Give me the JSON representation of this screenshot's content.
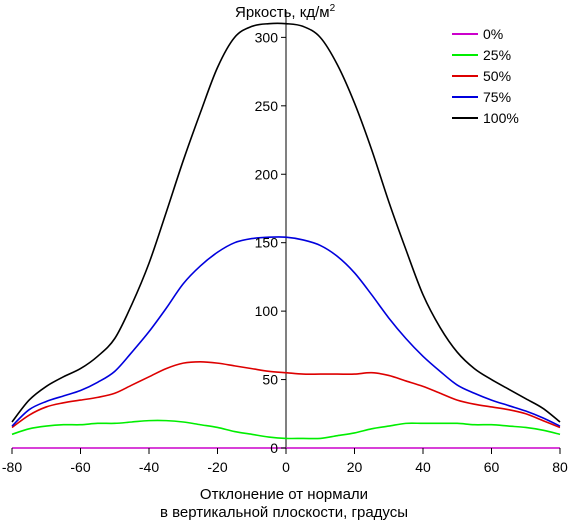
{
  "chart_data": {
    "type": "line",
    "title": "Яркость, кд/м",
    "title_superscript": "2",
    "xlabel_line1": "Отклонение от нормали",
    "xlabel_line2": "в вертикальной плоскости, градусы",
    "xlim": [
      -80,
      80
    ],
    "ylim": [
      0,
      320
    ],
    "x_ticks": [
      -80,
      -60,
      -40,
      -20,
      0,
      20,
      40,
      60,
      80
    ],
    "y_ticks": [
      0,
      50,
      100,
      150,
      200,
      250,
      300
    ],
    "grid": false,
    "legend_position": "top-right",
    "x": [
      -80,
      -75,
      -70,
      -65,
      -60,
      -55,
      -50,
      -45,
      -40,
      -35,
      -30,
      -25,
      -20,
      -15,
      -10,
      -5,
      0,
      5,
      10,
      15,
      20,
      25,
      30,
      35,
      40,
      45,
      50,
      55,
      60,
      65,
      70,
      75,
      80
    ],
    "series": [
      {
        "name": "0%",
        "color": "#cc00cc",
        "values": [
          0,
          0,
          0,
          0,
          0,
          0,
          0,
          0,
          0,
          0,
          0,
          0,
          0,
          0,
          0,
          0,
          0,
          0,
          0,
          0,
          0,
          0,
          0,
          0,
          0,
          0,
          0,
          0,
          0,
          0,
          0,
          0,
          0
        ]
      },
      {
        "name": "25%",
        "color": "#00ee00",
        "values": [
          10,
          14,
          16,
          17,
          17,
          18,
          18,
          19,
          20,
          20,
          19,
          17,
          15,
          12,
          10,
          8,
          7,
          7,
          7,
          9,
          11,
          14,
          16,
          18,
          18,
          18,
          18,
          17,
          17,
          16,
          15,
          13,
          10
        ]
      },
      {
        "name": "50%",
        "color": "#dd0000",
        "values": [
          15,
          24,
          30,
          33,
          35,
          37,
          40,
          46,
          52,
          58,
          62,
          63,
          62,
          60,
          58,
          56,
          55,
          54,
          54,
          54,
          54,
          55,
          53,
          49,
          45,
          40,
          35,
          32,
          30,
          28,
          25,
          20,
          15
        ]
      },
      {
        "name": "75%",
        "color": "#0000dd",
        "values": [
          16,
          28,
          34,
          38,
          42,
          48,
          56,
          70,
          85,
          102,
          120,
          133,
          143,
          150,
          153,
          154,
          154,
          152,
          148,
          140,
          128,
          112,
          95,
          80,
          67,
          56,
          46,
          40,
          35,
          31,
          27,
          22,
          16
        ]
      },
      {
        "name": "100%",
        "color": "#000000",
        "values": [
          19,
          35,
          45,
          52,
          58,
          67,
          80,
          105,
          135,
          172,
          210,
          245,
          278,
          300,
          308,
          310,
          310,
          308,
          300,
          280,
          252,
          218,
          180,
          145,
          112,
          88,
          70,
          58,
          50,
          43,
          36,
          29,
          19
        ]
      }
    ]
  }
}
